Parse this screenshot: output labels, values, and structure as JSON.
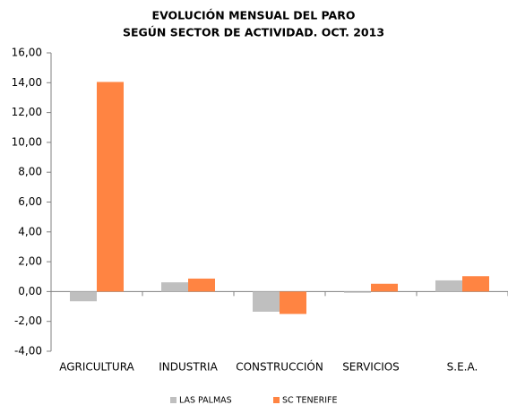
{
  "chart_data": {
    "type": "bar",
    "title": "EVOLUCIÓN MENSUAL DEL PARO",
    "subtitle": "SEGÚN SECTOR DE ACTIVIDAD. OCT. 2013",
    "categories": [
      "AGRICULTURA",
      "INDUSTRIA",
      "CONSTRUCCIÓN",
      "SERVICIOS",
      "S.E.A."
    ],
    "series": [
      {
        "name": "LAS PALMAS",
        "color": "#bfbfbf",
        "values": [
          -0.65,
          0.62,
          -1.35,
          -0.08,
          0.75
        ]
      },
      {
        "name": "SC TENERIFE",
        "color": "#ff8442",
        "values": [
          14.05,
          0.87,
          -1.5,
          0.52,
          1.03
        ]
      }
    ],
    "ylim": [
      -4,
      16
    ],
    "yticks": [
      {
        "value": -4,
        "label": "-4,00"
      },
      {
        "value": -2,
        "label": "-2,00"
      },
      {
        "value": 0,
        "label": "0,00"
      },
      {
        "value": 2,
        "label": "2,00"
      },
      {
        "value": 4,
        "label": "4,00"
      },
      {
        "value": 6,
        "label": "6,00"
      },
      {
        "value": 8,
        "label": "8,00"
      },
      {
        "value": 10,
        "label": "10,00"
      },
      {
        "value": 12,
        "label": "12,00"
      },
      {
        "value": 14,
        "label": "14,00"
      },
      {
        "value": 16,
        "label": "16,00"
      }
    ],
    "grid": false,
    "legend": "bottom"
  }
}
